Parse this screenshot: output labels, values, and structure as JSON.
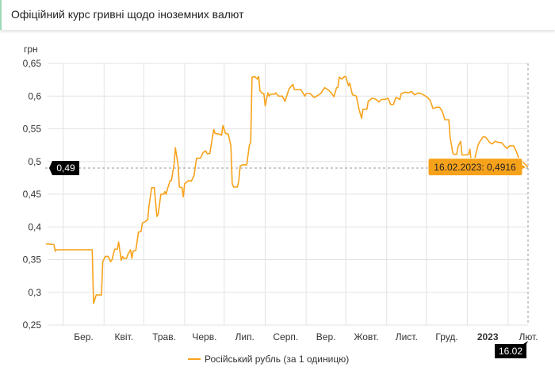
{
  "header": {
    "title": "Офіційний курс гривні щодо іноземних валют"
  },
  "colors": {
    "series": "#f7a21b",
    "grid": "#e3e3e3",
    "crosshair_label_bg": "#000000",
    "tooltip_bg": "#f7a21b"
  },
  "chart_data": {
    "type": "line",
    "ylabel": "грн",
    "ylim": [
      0.25,
      0.65
    ],
    "yticks": [
      "0,25",
      "0,3",
      "0,35",
      "0,4",
      "0,45",
      "0,5",
      "0,55",
      "0,6",
      "0,65"
    ],
    "ytick_values": [
      0.25,
      0.3,
      0.35,
      0.4,
      0.45,
      0.5,
      0.55,
      0.6,
      0.65
    ],
    "xlim": [
      "2022-02-16",
      "2023-02-16"
    ],
    "xticks": [
      {
        "date": "2022-03-01",
        "label": "Бер."
      },
      {
        "date": "2022-04-01",
        "label": "Квіт."
      },
      {
        "date": "2022-05-01",
        "label": "Трав."
      },
      {
        "date": "2022-06-01",
        "label": "Черв."
      },
      {
        "date": "2022-07-01",
        "label": "Лип."
      },
      {
        "date": "2022-08-01",
        "label": "Серп."
      },
      {
        "date": "2022-09-01",
        "label": "Вер."
      },
      {
        "date": "2022-10-01",
        "label": "Жовт."
      },
      {
        "date": "2022-11-01",
        "label": "Лист."
      },
      {
        "date": "2022-12-01",
        "label": "Груд."
      },
      {
        "date": "2023-01-01",
        "label": "2023",
        "bold": true
      },
      {
        "date": "2023-02-01",
        "label": "Лют."
      }
    ],
    "grid": true,
    "legend": "bottom",
    "series": [
      {
        "name": "Російський рубль (за 1 одиницю)",
        "points": [
          [
            "2022-02-16",
            0.374
          ],
          [
            "2022-02-17",
            0.374
          ],
          [
            "2022-02-22",
            0.373
          ],
          [
            "2022-02-23",
            0.363
          ],
          [
            "2022-02-24",
            0.365
          ],
          [
            "2022-03-23",
            0.365
          ],
          [
            "2022-03-24",
            0.283
          ],
          [
            "2022-03-26",
            0.296
          ],
          [
            "2022-03-30",
            0.296
          ],
          [
            "2022-03-31",
            0.347
          ],
          [
            "2022-04-02",
            0.355
          ],
          [
            "2022-04-04",
            0.355
          ],
          [
            "2022-04-06",
            0.347
          ],
          [
            "2022-04-07",
            0.35
          ],
          [
            "2022-04-09",
            0.366
          ],
          [
            "2022-04-11",
            0.366
          ],
          [
            "2022-04-12",
            0.377
          ],
          [
            "2022-04-14",
            0.349
          ],
          [
            "2022-04-15",
            0.355
          ],
          [
            "2022-04-16",
            0.352
          ],
          [
            "2022-04-18",
            0.352
          ],
          [
            "2022-04-19",
            0.358
          ],
          [
            "2022-04-21",
            0.365
          ],
          [
            "2022-04-22",
            0.352
          ],
          [
            "2022-04-23",
            0.363
          ],
          [
            "2022-04-25",
            0.364
          ],
          [
            "2022-04-27",
            0.392
          ],
          [
            "2022-04-29",
            0.393
          ],
          [
            "2022-04-30",
            0.406
          ],
          [
            "2022-05-02",
            0.408
          ],
          [
            "2022-05-04",
            0.411
          ],
          [
            "2022-05-05",
            0.432
          ],
          [
            "2022-05-07",
            0.46
          ],
          [
            "2022-05-09",
            0.46
          ],
          [
            "2022-05-10",
            0.437
          ],
          [
            "2022-05-11",
            0.416
          ],
          [
            "2022-05-12",
            0.42
          ],
          [
            "2022-05-14",
            0.45
          ],
          [
            "2022-05-16",
            0.45
          ],
          [
            "2022-05-17",
            0.454
          ],
          [
            "2022-05-18",
            0.45
          ],
          [
            "2022-05-19",
            0.458
          ],
          [
            "2022-05-21",
            0.471
          ],
          [
            "2022-05-22",
            0.471
          ],
          [
            "2022-05-24",
            0.496
          ],
          [
            "2022-05-25",
            0.521
          ],
          [
            "2022-05-27",
            0.495
          ],
          [
            "2022-05-28",
            0.461
          ],
          [
            "2022-05-30",
            0.46
          ],
          [
            "2022-05-31",
            0.446
          ],
          [
            "2022-06-01",
            0.466
          ],
          [
            "2022-06-04",
            0.471
          ],
          [
            "2022-06-06",
            0.47
          ],
          [
            "2022-06-08",
            0.478
          ],
          [
            "2022-06-10",
            0.505
          ],
          [
            "2022-06-13",
            0.505
          ],
          [
            "2022-06-15",
            0.514
          ],
          [
            "2022-06-17",
            0.516
          ],
          [
            "2022-06-18",
            0.512
          ],
          [
            "2022-06-20",
            0.512
          ],
          [
            "2022-06-23",
            0.549
          ],
          [
            "2022-06-24",
            0.543
          ],
          [
            "2022-06-27",
            0.542
          ],
          [
            "2022-06-29",
            0.54
          ],
          [
            "2022-06-30",
            0.555
          ],
          [
            "2022-07-02",
            0.543
          ],
          [
            "2022-07-04",
            0.542
          ],
          [
            "2022-07-06",
            0.524
          ],
          [
            "2022-07-07",
            0.466
          ],
          [
            "2022-07-08",
            0.461
          ],
          [
            "2022-07-11",
            0.461
          ],
          [
            "2022-07-12",
            0.471
          ],
          [
            "2022-07-13",
            0.493
          ],
          [
            "2022-07-15",
            0.495
          ],
          [
            "2022-07-18",
            0.495
          ],
          [
            "2022-07-20",
            0.525
          ],
          [
            "2022-07-21",
            0.529
          ],
          [
            "2022-07-22",
            0.629
          ],
          [
            "2022-07-24",
            0.63
          ],
          [
            "2022-07-26",
            0.626
          ],
          [
            "2022-07-27",
            0.63
          ],
          [
            "2022-07-28",
            0.608
          ],
          [
            "2022-07-30",
            0.604
          ],
          [
            "2022-07-31",
            0.604
          ],
          [
            "2022-08-01",
            0.585
          ],
          [
            "2022-08-03",
            0.605
          ],
          [
            "2022-08-04",
            0.6
          ],
          [
            "2022-08-05",
            0.603
          ],
          [
            "2022-08-08",
            0.603
          ],
          [
            "2022-08-09",
            0.605
          ],
          [
            "2022-08-11",
            0.6
          ],
          [
            "2022-08-14",
            0.6
          ],
          [
            "2022-08-16",
            0.592
          ],
          [
            "2022-08-19",
            0.611
          ],
          [
            "2022-08-22",
            0.618
          ],
          [
            "2022-08-23",
            0.61
          ],
          [
            "2022-08-28",
            0.61
          ],
          [
            "2022-08-31",
            0.6
          ],
          [
            "2022-09-01",
            0.604
          ],
          [
            "2022-09-04",
            0.604
          ],
          [
            "2022-09-07",
            0.598
          ],
          [
            "2022-09-10",
            0.601
          ],
          [
            "2022-09-12",
            0.604
          ],
          [
            "2022-09-15",
            0.613
          ],
          [
            "2022-09-18",
            0.609
          ],
          [
            "2022-09-20",
            0.605
          ],
          [
            "2022-09-22",
            0.599
          ],
          [
            "2022-09-24",
            0.613
          ],
          [
            "2022-09-25",
            0.613
          ],
          [
            "2022-09-26",
            0.629
          ],
          [
            "2022-09-28",
            0.626
          ],
          [
            "2022-09-30",
            0.63
          ],
          [
            "2022-10-01",
            0.63
          ],
          [
            "2022-10-03",
            0.616
          ],
          [
            "2022-10-04",
            0.62
          ],
          [
            "2022-10-06",
            0.602
          ],
          [
            "2022-10-09",
            0.6
          ],
          [
            "2022-10-11",
            0.58
          ],
          [
            "2022-10-13",
            0.566
          ],
          [
            "2022-10-14",
            0.58
          ],
          [
            "2022-10-17",
            0.58
          ],
          [
            "2022-10-18",
            0.592
          ],
          [
            "2022-10-21",
            0.597
          ],
          [
            "2022-10-24",
            0.595
          ],
          [
            "2022-10-26",
            0.591
          ],
          [
            "2022-10-28",
            0.595
          ],
          [
            "2022-10-31",
            0.595
          ],
          [
            "2022-11-02",
            0.597
          ],
          [
            "2022-11-04",
            0.587
          ],
          [
            "2022-11-06",
            0.587
          ],
          [
            "2022-11-08",
            0.598
          ],
          [
            "2022-11-11",
            0.595
          ],
          [
            "2022-11-12",
            0.604
          ],
          [
            "2022-11-15",
            0.606
          ],
          [
            "2022-11-17",
            0.605
          ],
          [
            "2022-11-20",
            0.607
          ],
          [
            "2022-11-22",
            0.602
          ],
          [
            "2022-11-25",
            0.605
          ],
          [
            "2022-11-28",
            0.603
          ],
          [
            "2022-12-02",
            0.598
          ],
          [
            "2022-12-04",
            0.593
          ],
          [
            "2022-12-06",
            0.581
          ],
          [
            "2022-12-09",
            0.583
          ],
          [
            "2022-12-11",
            0.583
          ],
          [
            "2022-12-13",
            0.577
          ],
          [
            "2022-12-15",
            0.564
          ],
          [
            "2022-12-18",
            0.564
          ],
          [
            "2022-12-19",
            0.537
          ],
          [
            "2022-12-21",
            0.513
          ],
          [
            "2022-12-22",
            0.511
          ],
          [
            "2022-12-24",
            0.511
          ],
          [
            "2022-12-25",
            0.523
          ],
          [
            "2022-12-27",
            0.531
          ],
          [
            "2022-12-28",
            0.51
          ],
          [
            "2022-12-30",
            0.51
          ],
          [
            "2023-01-02",
            0.511
          ],
          [
            "2023-01-03",
            0.519
          ],
          [
            "2023-01-04",
            0.499
          ],
          [
            "2023-01-06",
            0.499
          ],
          [
            "2023-01-09",
            0.524
          ],
          [
            "2023-01-10",
            0.529
          ],
          [
            "2023-01-13",
            0.538
          ],
          [
            "2023-01-15",
            0.537
          ],
          [
            "2023-01-18",
            0.529
          ],
          [
            "2023-01-20",
            0.527
          ],
          [
            "2023-01-22",
            0.531
          ],
          [
            "2023-01-25",
            0.529
          ],
          [
            "2023-01-27",
            0.529
          ],
          [
            "2023-01-29",
            0.524
          ],
          [
            "2023-01-31",
            0.52
          ],
          [
            "2023-02-02",
            0.524
          ],
          [
            "2023-02-05",
            0.524
          ],
          [
            "2023-02-07",
            0.516
          ],
          [
            "2023-02-09",
            0.505
          ],
          [
            "2023-02-16",
            0.4916
          ]
        ]
      }
    ],
    "crosshair": {
      "y_label": "0,49",
      "y_value": 0.49,
      "x_label": "16.02",
      "date": "2023-02-16"
    },
    "tooltip": {
      "text": "16.02.2023: 0,4916"
    }
  }
}
